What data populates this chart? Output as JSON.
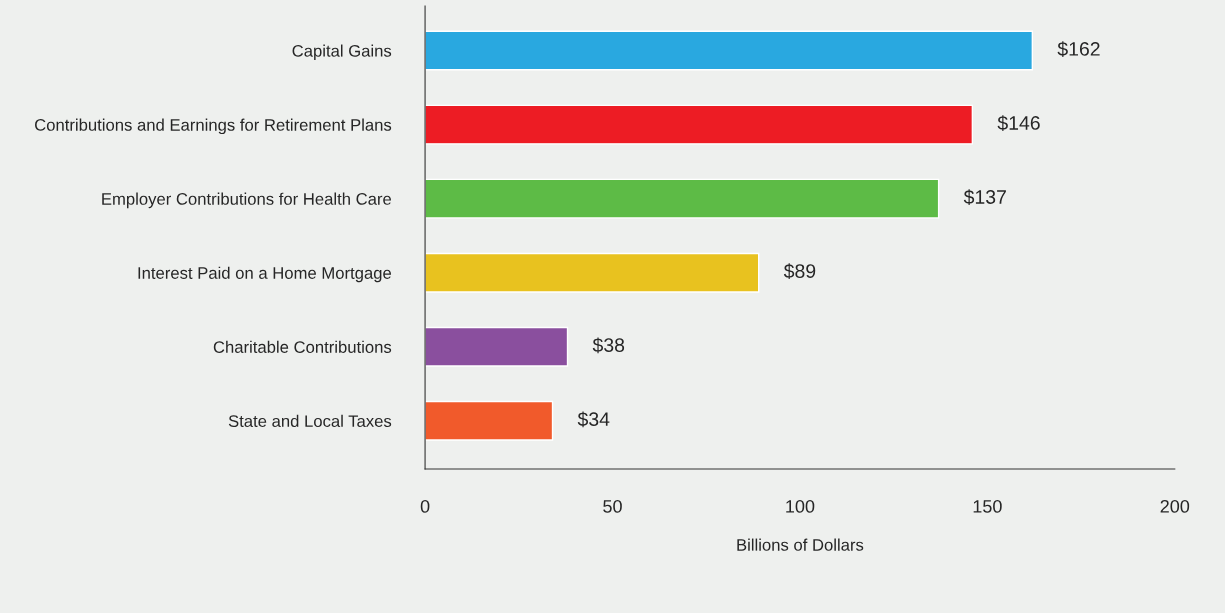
{
  "chart_data": {
    "type": "bar",
    "orientation": "horizontal",
    "xlabel": "Billions of Dollars",
    "categories": [
      "Capital Gains",
      "Contributions and Earnings for Retirement Plans",
      "Employer Contributions for Health Care",
      "Interest Paid on a Home Mortgage",
      "Charitable Contributions",
      "State and Local Taxes"
    ],
    "values": [
      162,
      146,
      137,
      89,
      38,
      34
    ],
    "colors": [
      "#29a8e0",
      "#ed1c24",
      "#5dbb46",
      "#e8c21f",
      "#8a4f9e",
      "#f15a2b"
    ],
    "value_labels": [
      "$162",
      "$146",
      "$137",
      "$89",
      "$38",
      "$34"
    ],
    "xlim": [
      0,
      200
    ],
    "xticks": [
      0,
      50,
      100,
      150,
      200
    ],
    "grid": false
  }
}
